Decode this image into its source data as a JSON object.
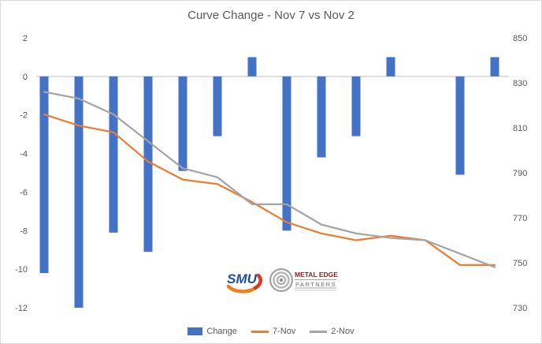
{
  "title": "Curve Change - Nov 7 vs Nov 2",
  "colors": {
    "bar_change": "#4472C4",
    "line_nov7": "#ED7D31",
    "line_nov2": "#A5A5A5",
    "axis_text": "#595959",
    "title_text": "#595959",
    "zero_line": "#BFBFBF",
    "background": "#FFFFFF",
    "border": "#D9D9D9"
  },
  "legend": [
    {
      "label": "Change",
      "swatch": "bar",
      "color": "#4472C4"
    },
    {
      "label": "7-Nov",
      "swatch": "line",
      "color": "#ED7D31"
    },
    {
      "label": "2-Nov",
      "swatch": "line",
      "color": "#A5A5A5"
    }
  ],
  "logos": {
    "smu": "SMU",
    "metal_edge_line1": "METAL EDGE",
    "metal_edge_line2": "PARTNERS"
  },
  "chart_data": {
    "type": "combo-bar-line",
    "title": "Curve Change - Nov 7 vs Nov 2",
    "x": {
      "num_points": 14,
      "labels_visible": false
    },
    "left_axis": {
      "min": -12,
      "max": 2,
      "ticks": [
        2,
        0,
        -2,
        -4,
        -6,
        -8,
        -10,
        -12
      ]
    },
    "right_axis": {
      "min": 730,
      "max": 850,
      "ticks": [
        850,
        830,
        810,
        790,
        770,
        750,
        730
      ]
    },
    "series": [
      {
        "name": "Change",
        "type": "bar",
        "axis": "left",
        "color": "#4472C4",
        "values": [
          -10.2,
          -12,
          -8.1,
          -9.1,
          -4.9,
          -3.1,
          1,
          -8,
          -4.2,
          -3.1,
          1,
          0,
          -5.1,
          1
        ]
      },
      {
        "name": "7-Nov",
        "type": "line",
        "axis": "right",
        "color": "#ED7D31",
        "values": [
          816,
          811,
          808,
          795,
          787,
          785,
          777,
          768,
          763,
          760,
          762,
          760,
          749,
          749
        ]
      },
      {
        "name": "2-Nov",
        "type": "line",
        "axis": "right",
        "color": "#A5A5A5",
        "values": [
          826,
          823,
          816,
          804,
          792,
          788,
          776,
          776,
          767,
          763,
          761,
          760,
          754,
          748
        ]
      }
    ],
    "legend_position": "bottom",
    "gridlines": "none (zero axis line only)"
  }
}
